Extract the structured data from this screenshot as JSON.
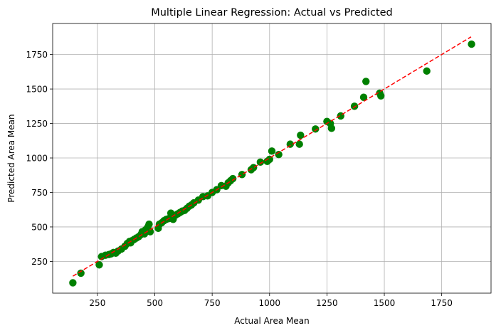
{
  "chart_data": {
    "type": "scatter",
    "title": "Multiple Linear Regression: Actual vs Predicted",
    "xlabel": "Actual Area Mean",
    "ylabel": "Predicted Area Mean",
    "xlim": [
      55,
      1965
    ],
    "ylim": [
      20,
      1975
    ],
    "xticks": [
      250,
      500,
      750,
      1000,
      1250,
      1500,
      1750
    ],
    "yticks": [
      250,
      500,
      750,
      1000,
      1250,
      1500,
      1750
    ],
    "grid": true,
    "colors": {
      "points": "#008000",
      "fit_line": "#ff0000"
    },
    "fit_line": {
      "x": [
        143,
        1878
      ],
      "y": [
        143,
        1878
      ],
      "style": "dashed"
    },
    "points": {
      "x": [
        143,
        178,
        258,
        268,
        285,
        300,
        310,
        320,
        330,
        340,
        355,
        370,
        380,
        390,
        395,
        400,
        410,
        420,
        430,
        440,
        445,
        455,
        460,
        470,
        475,
        480,
        515,
        520,
        530,
        540,
        550,
        560,
        570,
        575,
        580,
        590,
        600,
        610,
        620,
        630,
        640,
        650,
        660,
        670,
        690,
        710,
        730,
        750,
        770,
        790,
        810,
        820,
        830,
        840,
        880,
        920,
        930,
        960,
        990,
        1000,
        1010,
        1040,
        1090,
        1130,
        1135,
        1200,
        1250,
        1265,
        1270,
        1310,
        1370,
        1410,
        1420,
        1480,
        1485,
        1685,
        1880
      ],
      "y": [
        95,
        165,
        225,
        285,
        295,
        300,
        305,
        315,
        310,
        325,
        340,
        360,
        380,
        395,
        385,
        400,
        410,
        420,
        430,
        445,
        465,
        450,
        480,
        500,
        520,
        465,
        490,
        520,
        530,
        545,
        555,
        560,
        600,
        570,
        555,
        585,
        595,
        605,
        615,
        620,
        635,
        650,
        660,
        675,
        695,
        720,
        725,
        750,
        770,
        800,
        795,
        820,
        835,
        850,
        880,
        915,
        930,
        970,
        975,
        990,
        1050,
        1025,
        1100,
        1100,
        1165,
        1210,
        1265,
        1250,
        1215,
        1305,
        1375,
        1440,
        1555,
        1470,
        1450,
        1630,
        1825
      ]
    }
  }
}
